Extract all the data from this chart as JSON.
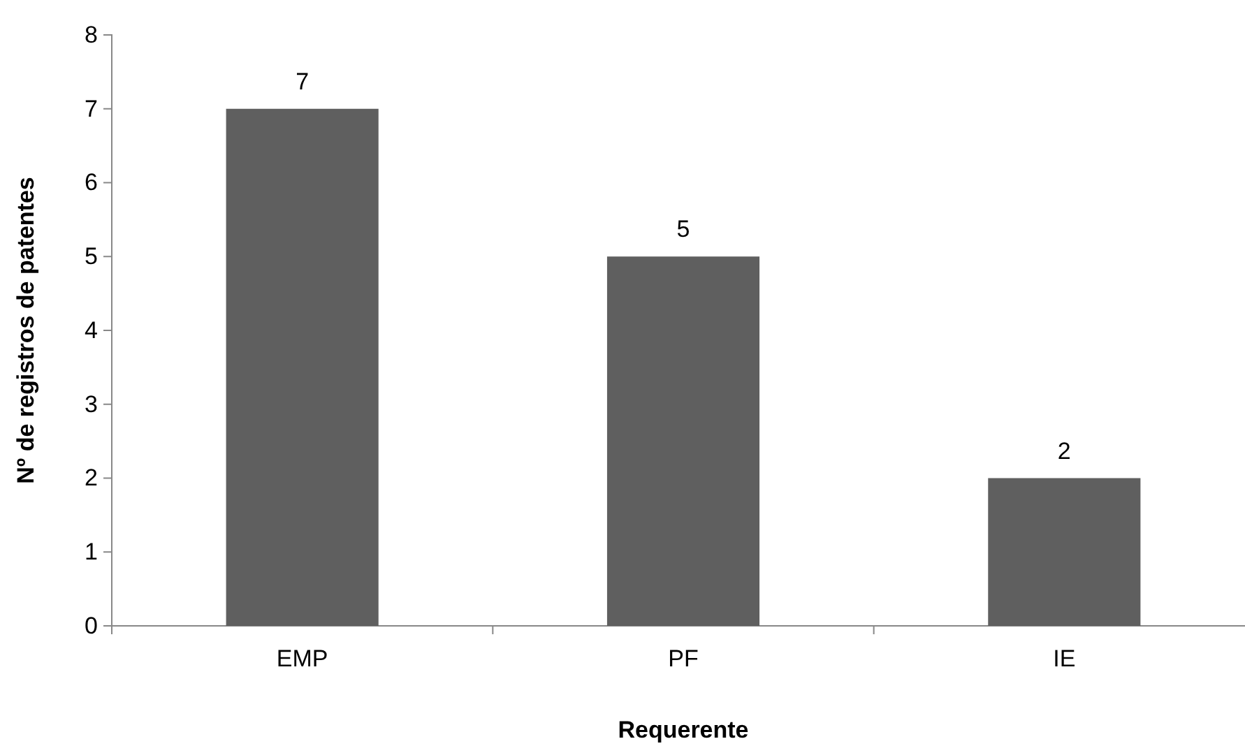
{
  "chart_data": {
    "type": "bar",
    "xlabel": "Requerente",
    "ylabel": "Nº de registros de patentes",
    "categories": [
      "EMP",
      "PF",
      "IE"
    ],
    "values": [
      7,
      5,
      2
    ],
    "color": "#5f5f5f",
    "ylim": [
      0,
      8
    ],
    "yticks": [
      0,
      1,
      2,
      3,
      4,
      5,
      6,
      7,
      8
    ],
    "grid": false,
    "data_labels": true
  }
}
